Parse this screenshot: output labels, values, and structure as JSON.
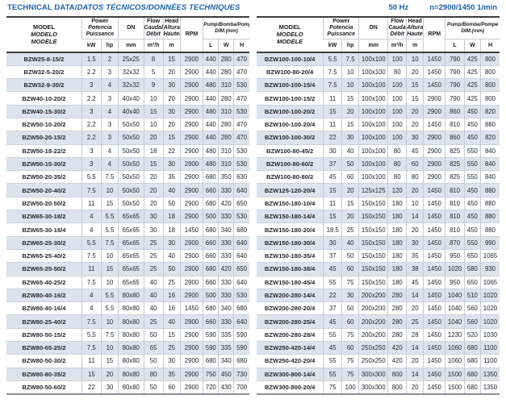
{
  "title": {
    "part1": "TECHNICAL DATA/",
    "part2": "DATOS TÉCNICOS/DONNÉES TECHNIQUES"
  },
  "frequency_note": {
    "hz": "50 Hz",
    "speed": "n=2900/1450 1/min"
  },
  "colors": {
    "accent_blue": "#1a5ea7",
    "row_shade": "#dde3ed",
    "heavy_border": "#3c3c3c",
    "light_border": "#c5cbd4"
  },
  "header": {
    "model": {
      "l1": "MODEL",
      "l2": "MODELO",
      "l3": "MODÈLE"
    },
    "power": {
      "l1": "Power",
      "l2": "Potencia",
      "l3": "Puissance"
    },
    "power_units": {
      "kw": "kW",
      "hp": "hp"
    },
    "dn": {
      "label": "DN",
      "unit": "mm"
    },
    "flow": {
      "l1": "Flow",
      "l2": "Caudal",
      "l3": "Débit",
      "unit": "m³/h"
    },
    "head": {
      "l1": "Head",
      "l2": "Altura",
      "l3": "Hauteur",
      "unit": "m"
    },
    "rpm": "RPM",
    "dim": {
      "l1": "Pump/Bomba/Pompe",
      "l2": "DIM.(mm)"
    },
    "dim_units": {
      "l": "L",
      "w": "W",
      "h": "H"
    }
  },
  "left_table": {
    "rows": [
      [
        "BZW25-8-15/2",
        "1.5",
        "2",
        "25x25",
        "8",
        "15",
        "2900",
        "440",
        "280",
        "470"
      ],
      [
        "BZW32-5-20/2",
        "2.2",
        "3",
        "32x32",
        "5",
        "20",
        "2900",
        "440",
        "280",
        "470"
      ],
      [
        "BZW32-9-30/2",
        "3",
        "4",
        "32x32",
        "9",
        "30",
        "2900",
        "480",
        "310",
        "530"
      ],
      [
        "BZW40-10-20/2",
        "2.2",
        "3",
        "40x40",
        "10",
        "20",
        "2900",
        "440",
        "280",
        "470"
      ],
      [
        "BZW40-15-30/2",
        "3",
        "4",
        "40x40",
        "15",
        "30",
        "2900",
        "480",
        "310",
        "530"
      ],
      [
        "BZW50-10-20/2",
        "2.2",
        "3",
        "50x50",
        "10",
        "20",
        "2900",
        "440",
        "280",
        "470"
      ],
      [
        "BZW50-20-15/2",
        "2.2",
        "3",
        "50x50",
        "20",
        "15",
        "2900",
        "440",
        "280",
        "470"
      ],
      [
        "BZW50-18-22/2",
        "3",
        "4",
        "50x50",
        "18",
        "22",
        "2900",
        "480",
        "310",
        "530"
      ],
      [
        "BZW50-15-30/2",
        "3",
        "4",
        "50x50",
        "15",
        "30",
        "2900",
        "480",
        "310",
        "530"
      ],
      [
        "BZW50-20-35/2",
        "5.5",
        "7.5",
        "50x50",
        "20",
        "35",
        "2900",
        "680",
        "350",
        "630"
      ],
      [
        "BZW50-20-40/2",
        "7.5",
        "10",
        "50x50",
        "20",
        "40",
        "2900",
        "660",
        "330",
        "640"
      ],
      [
        "BZW50-20-50/2",
        "11",
        "15",
        "50x50",
        "20",
        "50",
        "2900",
        "680",
        "420",
        "650"
      ],
      [
        "BZW65-30-18/2",
        "4",
        "5.5",
        "65x65",
        "30",
        "18",
        "2900",
        "500",
        "330",
        "530"
      ],
      [
        "BZW65-30-18/4",
        "4",
        "5.5",
        "65x65",
        "30",
        "18",
        "1450",
        "680",
        "340",
        "680"
      ],
      [
        "BZW65-25-30/2",
        "5.5",
        "7.5",
        "65x65",
        "25",
        "30",
        "2900",
        "660",
        "330",
        "640"
      ],
      [
        "BZW65-25-40/2",
        "7.5",
        "10",
        "65x65",
        "25",
        "40",
        "2900",
        "660",
        "330",
        "640"
      ],
      [
        "BZW65-25-50/2",
        "11",
        "15",
        "65x65",
        "25",
        "50",
        "2900",
        "680",
        "420",
        "650"
      ],
      [
        "BZW65-40-25/2",
        "7.5",
        "10",
        "65x65",
        "40",
        "25",
        "2900",
        "660",
        "330",
        "640"
      ],
      [
        "BZW80-40-16/2",
        "4",
        "5.5",
        "80x80",
        "40",
        "16",
        "2900",
        "500",
        "330",
        "530"
      ],
      [
        "BZW80-40-16/4",
        "4",
        "5.5",
        "80x80",
        "40",
        "16",
        "1450",
        "680",
        "340",
        "680"
      ],
      [
        "BZW80-25-40/2",
        "7.5",
        "10",
        "80x80",
        "25",
        "40",
        "2900",
        "660",
        "330",
        "640"
      ],
      [
        "BZW80-50-15/2",
        "5.5",
        "7.5",
        "80x80",
        "50",
        "15",
        "2900",
        "590",
        "335",
        "590"
      ],
      [
        "BZW80-65-25/2",
        "7.5",
        "10",
        "80x80",
        "65",
        "25",
        "2900",
        "590",
        "335",
        "590"
      ],
      [
        "BZW80-50-30/2",
        "11",
        "15",
        "80x80",
        "50",
        "30",
        "2900",
        "680",
        "340",
        "680"
      ],
      [
        "BZW80-80-35/2",
        "15",
        "20",
        "80x80",
        "80",
        "35",
        "2900",
        "750",
        "450",
        "730"
      ],
      [
        "BZW80-50-60/2",
        "22",
        "30",
        "80x80",
        "50",
        "60",
        "2900",
        "720",
        "430",
        "700"
      ]
    ]
  },
  "right_table": {
    "rows": [
      [
        "BZW100-100-10/4",
        "5.5",
        "7.5",
        "100x100",
        "100",
        "10",
        "1450",
        "790",
        "425",
        "800"
      ],
      [
        "BZW100-80-20/4",
        "7.5",
        "10",
        "100x100",
        "80",
        "20",
        "1450",
        "790",
        "425",
        "800"
      ],
      [
        "BZW100-100-15/4",
        "7.5",
        "10",
        "100x100",
        "100",
        "15",
        "1450",
        "790",
        "425",
        "800"
      ],
      [
        "BZW100-100-15/2",
        "11",
        "15",
        "100x100",
        "100",
        "15",
        "2900",
        "790",
        "425",
        "800"
      ],
      [
        "BZW100-100-20/2",
        "15",
        "20",
        "100x100",
        "100",
        "20",
        "2900",
        "860",
        "450",
        "820"
      ],
      [
        "BZW100-100-20/4",
        "11",
        "15",
        "100x100",
        "100",
        "20",
        "1450",
        "810",
        "450",
        "880"
      ],
      [
        "BZW100-100-30/2",
        "22",
        "30",
        "100x100",
        "100",
        "30",
        "2900",
        "860",
        "450",
        "820"
      ],
      [
        "BZW100-80-45/2",
        "30",
        "40",
        "100x100",
        "80",
        "45",
        "2900",
        "825",
        "550",
        "840"
      ],
      [
        "BZW100-80-60/2",
        "37",
        "50",
        "100x100",
        "80",
        "60",
        "2900",
        "825",
        "550",
        "840"
      ],
      [
        "BZW100-80-80/2",
        "45",
        "60",
        "100x100",
        "80",
        "80",
        "2900",
        "825",
        "550",
        "840"
      ],
      [
        "BZW125-120-20/4",
        "15",
        "20",
        "125x125",
        "120",
        "20",
        "1450",
        "810",
        "450",
        "880"
      ],
      [
        "BZW150-180-10/4",
        "11",
        "15",
        "150x150",
        "180",
        "10",
        "1450",
        "810",
        "450",
        "880"
      ],
      [
        "BZW150-180-14/4",
        "15",
        "20",
        "150x150",
        "180",
        "14",
        "1450",
        "810",
        "450",
        "880"
      ],
      [
        "BZW150-180-20/4",
        "18.5",
        "25",
        "150x150",
        "180",
        "20",
        "1450",
        "810",
        "450",
        "880"
      ],
      [
        "BZW150-180-30/4",
        "30",
        "40",
        "150x150",
        "180",
        "30",
        "1450",
        "870",
        "550",
        "990"
      ],
      [
        "BZW150-180-35/4",
        "37",
        "50",
        "150x150",
        "180",
        "35",
        "1450",
        "950",
        "650",
        "1065"
      ],
      [
        "BZW150-180-38/4",
        "45",
        "60",
        "150x150",
        "180",
        "38",
        "1450",
        "1020",
        "580",
        "930"
      ],
      [
        "BZW150-180-45/4",
        "55",
        "75",
        "150x150",
        "180",
        "45",
        "1450",
        "950",
        "650",
        "1065"
      ],
      [
        "BZW200-280-14/4",
        "22",
        "30",
        "200x200",
        "280",
        "14",
        "1450",
        "1040",
        "510",
        "1020"
      ],
      [
        "BZW200-280-20/4",
        "37",
        "50",
        "200x200",
        "280",
        "20",
        "1450",
        "1040",
        "560",
        "1020"
      ],
      [
        "BZW200-280-25/4",
        "45",
        "60",
        "200x200",
        "280",
        "25",
        "1450",
        "1040",
        "560",
        "1020"
      ],
      [
        "BZW200-280-28/4",
        "55",
        "75",
        "200x200",
        "280",
        "28",
        "1450",
        "1230",
        "520",
        "1030"
      ],
      [
        "BZW250-420-14/4",
        "45",
        "60",
        "250x250",
        "420",
        "14",
        "1450",
        "1060",
        "680",
        "1100"
      ],
      [
        "BZW250-420-20/4",
        "55",
        "75",
        "250x250",
        "420",
        "20",
        "1450",
        "1060",
        "680",
        "1100"
      ],
      [
        "BZW300-800-14/4",
        "55",
        "75",
        "300x300",
        "800",
        "14",
        "1450",
        "1500",
        "680",
        "1350"
      ],
      [
        "BZW300-800-20/4",
        "75",
        "100",
        "300x300",
        "800",
        "20",
        "1450",
        "1500",
        "680",
        "1350"
      ]
    ]
  }
}
